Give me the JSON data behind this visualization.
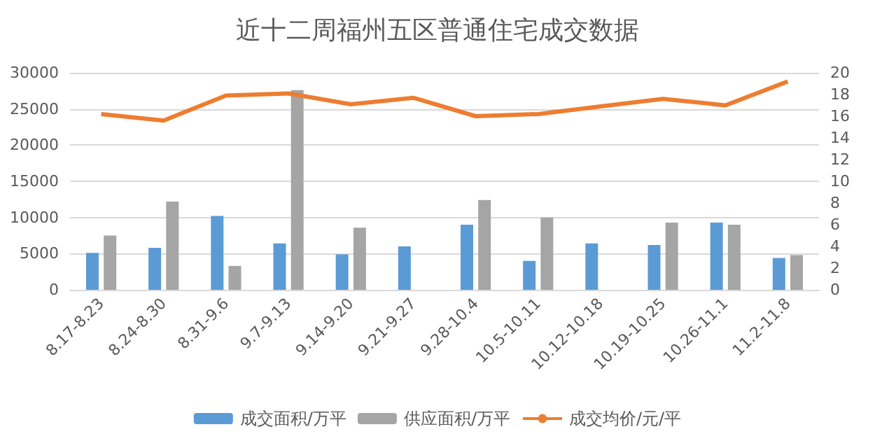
{
  "chart_data": {
    "type": "bar",
    "title": "近十二周福州五区普通住宅成交数据",
    "categories": [
      "8.17-8.23",
      "8.24-8.30",
      "8.31-9.6",
      "9.7-9.13",
      "9.14-9.20",
      "9.21-9.27",
      "9.28-10.4",
      "10.5-10.11",
      "10.12-10.18",
      "10.19-10.25",
      "10.26-11.1",
      "11.2-11.8"
    ],
    "series": [
      {
        "name": "成交面积/万平",
        "color": "#5b9bd5",
        "values": [
          5100,
          5800,
          10200,
          6400,
          4900,
          6000,
          9000,
          4000,
          6400,
          6200,
          9300,
          4400
        ]
      },
      {
        "name": "供应面积/万平",
        "color": "#a5a5a5",
        "values": [
          7500,
          12200,
          3300,
          27600,
          8600,
          null,
          12400,
          10000,
          null,
          9300,
          9000,
          4800
        ]
      },
      {
        "name": "成交均价/元/平",
        "type": "line",
        "axis": "y2",
        "color": "#ed7d31",
        "values": [
          16.2,
          15.6,
          17.9,
          18.1,
          17.1,
          17.7,
          16.0,
          16.2,
          16.9,
          17.6,
          17.0,
          19.2
        ]
      }
    ],
    "ylim": [
      0,
      30000
    ],
    "yticks": [
      0,
      5000,
      10000,
      15000,
      20000,
      25000,
      30000
    ],
    "y2lim": [
      0,
      20
    ],
    "y2ticks": [
      0,
      2,
      4,
      6,
      8,
      10,
      12,
      14,
      16,
      18,
      20
    ],
    "grid": "y",
    "legend": "bottom",
    "marker": "none"
  }
}
